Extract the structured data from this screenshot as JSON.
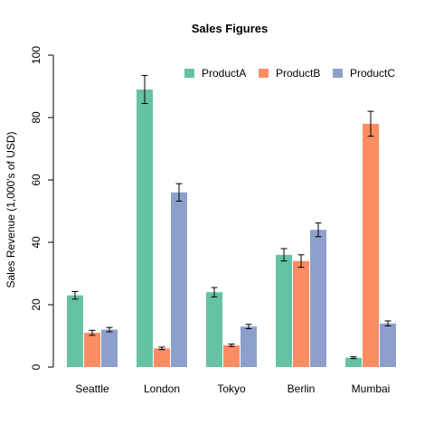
{
  "chart_data": {
    "type": "bar",
    "title": "Sales Figures",
    "xlabel": "",
    "ylabel": "Sales Revenue (1,000's of USD)",
    "ylim": [
      0,
      100
    ],
    "yticks": [
      0,
      20,
      40,
      60,
      80,
      100
    ],
    "categories": [
      "Seattle",
      "London",
      "Tokyo",
      "Berlin",
      "Mumbai"
    ],
    "legend_position": "top-right",
    "series": [
      {
        "name": "ProductA",
        "color": "#66c2a5",
        "values": [
          23,
          89,
          24,
          36,
          3
        ],
        "errors": [
          1.2,
          4.5,
          1.5,
          2,
          0.3
        ]
      },
      {
        "name": "ProductB",
        "color": "#fc8d62",
        "values": [
          11,
          6,
          7,
          34,
          78
        ],
        "errors": [
          0.8,
          0.4,
          0.4,
          2,
          4
        ]
      },
      {
        "name": "ProductC",
        "color": "#8da0cb",
        "values": [
          12,
          56,
          13,
          44,
          14
        ],
        "errors": [
          0.7,
          2.8,
          0.7,
          2.2,
          0.8
        ]
      }
    ]
  }
}
